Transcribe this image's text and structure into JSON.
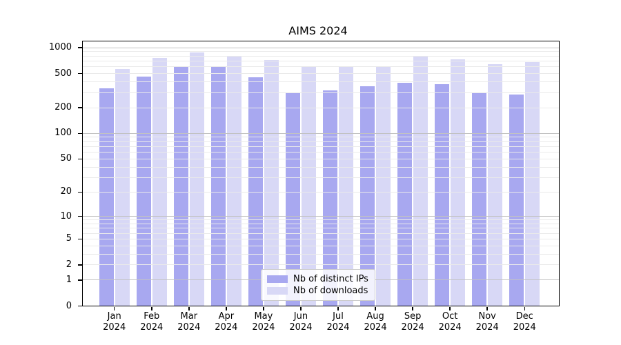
{
  "chart_data": {
    "type": "bar",
    "title": "AIMS 2024",
    "xlabel": "",
    "ylabel": "",
    "y_scale": "log-like (log10 of 1+value), symlog appearance",
    "ylim": [
      0,
      1200
    ],
    "grid": true,
    "legend_position": "lower center",
    "months": [
      "Jan",
      "Feb",
      "Mar",
      "Apr",
      "May",
      "Jun",
      "Jul",
      "Aug",
      "Sep",
      "Oct",
      "Nov",
      "Dec"
    ],
    "year_label": "2024",
    "categories": [
      "Jan 2024",
      "Feb 2024",
      "Mar 2024",
      "Apr 2024",
      "May 2024",
      "Jun 2024",
      "Jul 2024",
      "Aug 2024",
      "Sep 2024",
      "Oct 2024",
      "Nov 2024",
      "Dec 2024"
    ],
    "series": [
      {
        "name": "Nb of distinct IPs",
        "color": "#a8a8f0",
        "values": [
          335,
          460,
          600,
          610,
          450,
          300,
          320,
          355,
          390,
          375,
          300,
          285
        ]
      },
      {
        "name": "Nb of downloads",
        "color": "#d8d8f6",
        "values": [
          565,
          760,
          875,
          790,
          720,
          605,
          605,
          595,
          785,
          725,
          640,
          680
        ]
      }
    ],
    "y_ticks": [
      0,
      1,
      2,
      5,
      10,
      20,
      50,
      100,
      200,
      500,
      1000
    ],
    "y_major_gridlines": [
      1,
      10,
      100,
      1000
    ],
    "y_minor_gridline_decades": [
      1,
      10,
      100
    ],
    "style": {
      "major_grid_color": "#c2c2c2",
      "minor_grid_color": "#eaeaea",
      "spine_color": "#000000",
      "text_color": "#000000",
      "background_color": "#ffffff",
      "legend_border_color": "#cccccc"
    }
  }
}
